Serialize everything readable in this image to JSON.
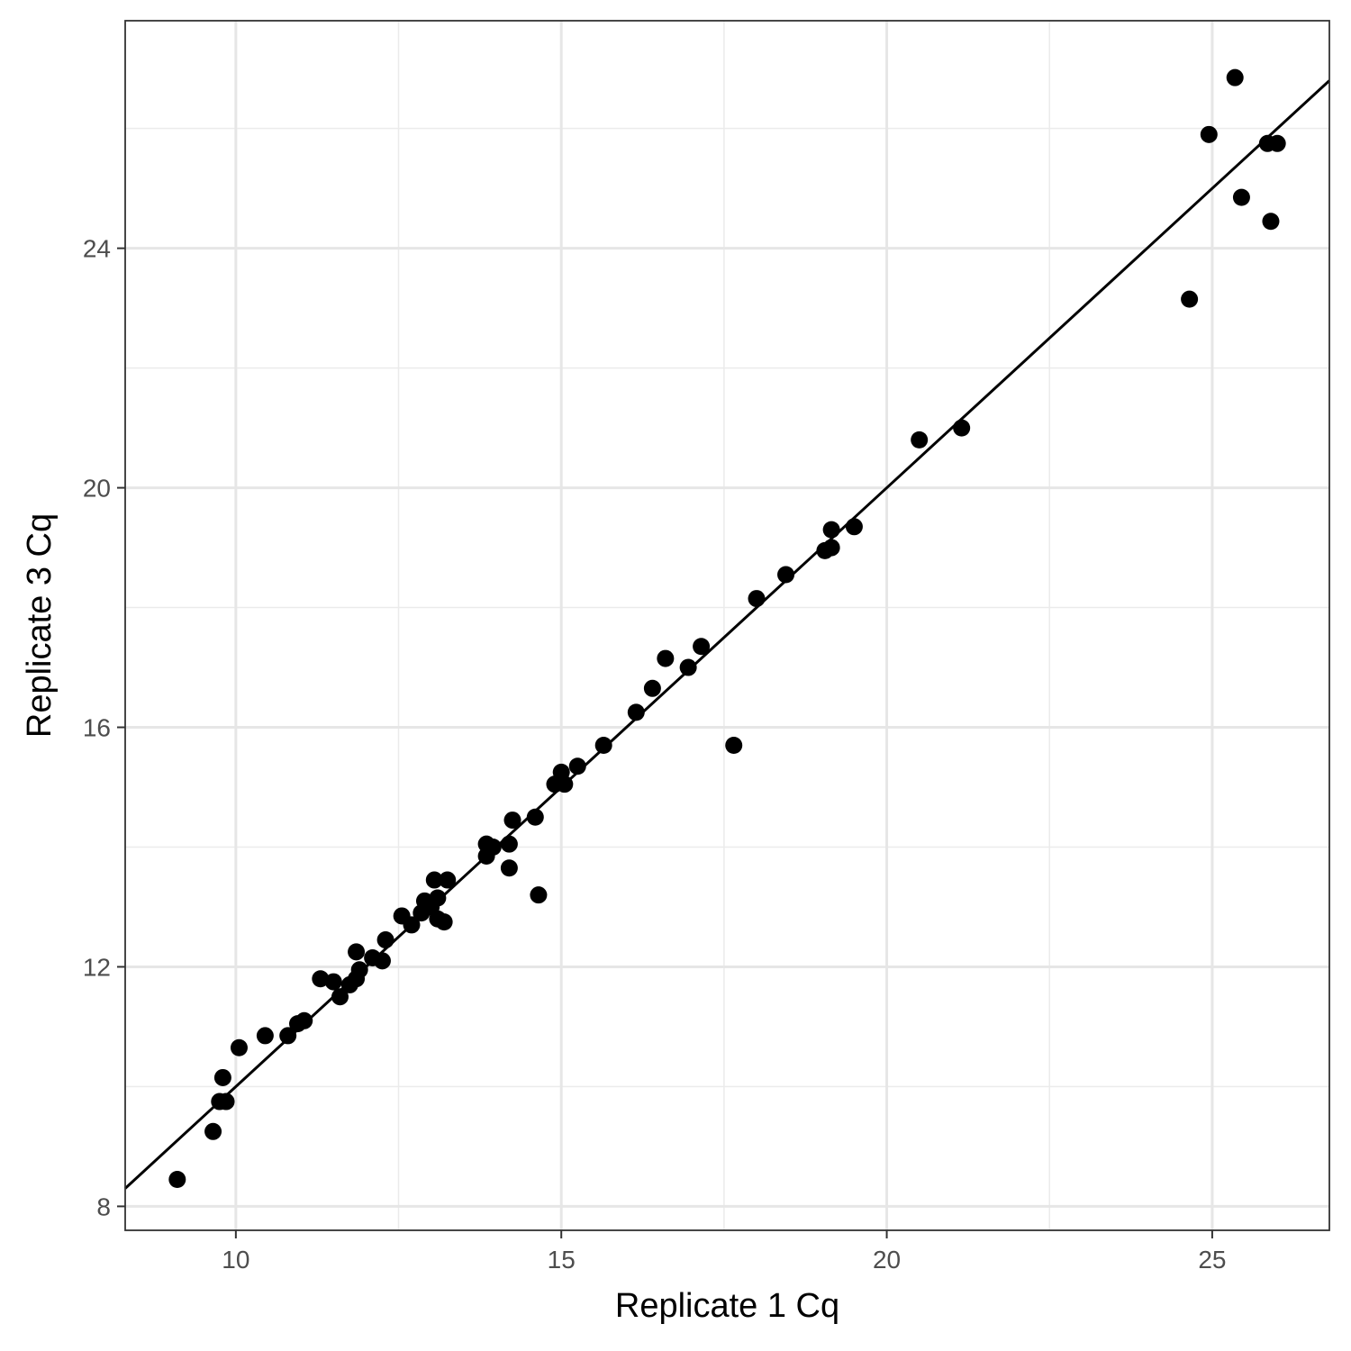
{
  "chart_data": {
    "type": "scatter",
    "title": "",
    "xlabel": "Replicate 1 Cq",
    "ylabel": "Replicate 3 Cq",
    "xlim": [
      8.3,
      26.8
    ],
    "ylim": [
      7.6,
      27.8
    ],
    "x_ticks": [
      10,
      15,
      20,
      25
    ],
    "x_ticks_minor": [
      12.5,
      17.5,
      22.5
    ],
    "y_ticks": [
      8,
      12,
      16,
      20,
      24
    ],
    "y_ticks_minor": [
      10,
      14,
      18,
      22,
      26
    ],
    "grid": true,
    "legend": "none",
    "reference_line": {
      "slope": 1,
      "intercept": 0
    },
    "points": [
      {
        "x": 9.1,
        "y": 8.45
      },
      {
        "x": 9.65,
        "y": 9.25
      },
      {
        "x": 9.75,
        "y": 9.75
      },
      {
        "x": 9.8,
        "y": 10.15
      },
      {
        "x": 9.85,
        "y": 9.75
      },
      {
        "x": 10.05,
        "y": 10.65
      },
      {
        "x": 10.45,
        "y": 10.85
      },
      {
        "x": 10.8,
        "y": 10.85
      },
      {
        "x": 10.95,
        "y": 11.05
      },
      {
        "x": 11.05,
        "y": 11.1
      },
      {
        "x": 11.3,
        "y": 11.8
      },
      {
        "x": 11.5,
        "y": 11.75
      },
      {
        "x": 11.6,
        "y": 11.5
      },
      {
        "x": 11.75,
        "y": 11.7
      },
      {
        "x": 11.85,
        "y": 11.8
      },
      {
        "x": 11.85,
        "y": 12.25
      },
      {
        "x": 11.9,
        "y": 11.95
      },
      {
        "x": 12.1,
        "y": 12.15
      },
      {
        "x": 12.25,
        "y": 12.1
      },
      {
        "x": 12.3,
        "y": 12.45
      },
      {
        "x": 12.55,
        "y": 12.85
      },
      {
        "x": 12.7,
        "y": 12.7
      },
      {
        "x": 12.85,
        "y": 12.9
      },
      {
        "x": 12.9,
        "y": 13.1
      },
      {
        "x": 13.0,
        "y": 13.0
      },
      {
        "x": 13.05,
        "y": 13.45
      },
      {
        "x": 13.1,
        "y": 13.15
      },
      {
        "x": 13.1,
        "y": 12.8
      },
      {
        "x": 13.2,
        "y": 12.75
      },
      {
        "x": 13.25,
        "y": 13.45
      },
      {
        "x": 13.85,
        "y": 14.05
      },
      {
        "x": 13.85,
        "y": 13.85
      },
      {
        "x": 13.95,
        "y": 14.0
      },
      {
        "x": 14.2,
        "y": 14.05
      },
      {
        "x": 14.2,
        "y": 13.65
      },
      {
        "x": 14.25,
        "y": 14.45
      },
      {
        "x": 14.6,
        "y": 14.5
      },
      {
        "x": 14.65,
        "y": 13.2
      },
      {
        "x": 14.9,
        "y": 15.05
      },
      {
        "x": 15.0,
        "y": 15.25
      },
      {
        "x": 15.05,
        "y": 15.05
      },
      {
        "x": 15.25,
        "y": 15.35
      },
      {
        "x": 15.65,
        "y": 15.7
      },
      {
        "x": 16.15,
        "y": 16.25
      },
      {
        "x": 16.4,
        "y": 16.65
      },
      {
        "x": 16.6,
        "y": 17.15
      },
      {
        "x": 16.95,
        "y": 17.0
      },
      {
        "x": 17.15,
        "y": 17.35
      },
      {
        "x": 17.65,
        "y": 15.7
      },
      {
        "x": 18.0,
        "y": 18.15
      },
      {
        "x": 18.45,
        "y": 18.55
      },
      {
        "x": 19.05,
        "y": 18.95
      },
      {
        "x": 19.15,
        "y": 19.0
      },
      {
        "x": 19.15,
        "y": 19.3
      },
      {
        "x": 19.5,
        "y": 19.35
      },
      {
        "x": 20.5,
        "y": 20.8
      },
      {
        "x": 21.15,
        "y": 21.0
      },
      {
        "x": 24.65,
        "y": 23.15
      },
      {
        "x": 24.95,
        "y": 25.9
      },
      {
        "x": 25.35,
        "y": 26.85
      },
      {
        "x": 25.45,
        "y": 24.85
      },
      {
        "x": 25.85,
        "y": 25.75
      },
      {
        "x": 25.9,
        "y": 24.45
      },
      {
        "x": 26.0,
        "y": 25.75
      }
    ]
  }
}
